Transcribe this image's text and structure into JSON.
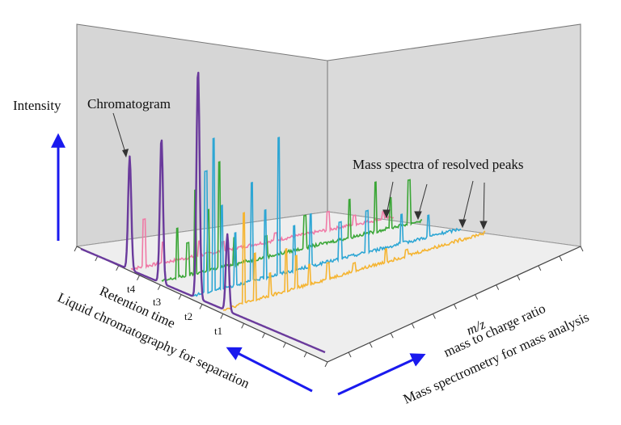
{
  "diagram": {
    "title_labels": {
      "intensity": "Intensity",
      "chromatogram": "Chromatogram",
      "mass_spectra": "Mass spectra of resolved peaks",
      "retention_time": "Retention time",
      "lc_axis": "Liquid chromatography for separation",
      "mz": "m/z",
      "mass_to_charge": "mass to charge ratio",
      "ms_axis": "Mass spectrometry for mass analysis"
    },
    "time_ticks": [
      "t4",
      "t3",
      "t2",
      "t1"
    ],
    "spectra": [
      {
        "name": "t4",
        "color": "#f07aa6",
        "peaks": [
          [
            0.05,
            0.55
          ],
          [
            0.12,
            0.25
          ],
          [
            0.26,
            0.18
          ],
          [
            0.35,
            0.12
          ],
          [
            0.55,
            0.1
          ],
          [
            0.75,
            0.22
          ],
          [
            0.85,
            0.12
          ],
          [
            0.96,
            0.1
          ]
        ]
      },
      {
        "name": "t3",
        "color": "#3aa636",
        "peaks": [
          [
            0.06,
            0.45
          ],
          [
            0.1,
            0.3
          ],
          [
            0.13,
            0.75
          ],
          [
            0.18,
            0.55
          ],
          [
            0.22,
            0.95
          ],
          [
            0.28,
            0.25
          ],
          [
            0.4,
            0.2
          ],
          [
            0.55,
            0.3
          ],
          [
            0.72,
            0.35
          ],
          [
            0.82,
            0.45
          ],
          [
            0.88,
            0.28
          ],
          [
            0.95,
            0.4
          ]
        ]
      },
      {
        "name": "t2",
        "color": "#2da6d4",
        "peaks": [
          [
            0.05,
            0.8
          ],
          [
            0.08,
            1.0
          ],
          [
            0.11,
            0.55
          ],
          [
            0.16,
            0.35
          ],
          [
            0.22,
            0.65
          ],
          [
            0.27,
            0.45
          ],
          [
            0.32,
            0.9
          ],
          [
            0.38,
            0.3
          ],
          [
            0.44,
            0.35
          ],
          [
            0.55,
            0.25
          ],
          [
            0.65,
            0.28
          ],
          [
            0.78,
            0.2
          ],
          [
            0.88,
            0.15
          ]
        ]
      },
      {
        "name": "t1",
        "color": "#f5b431",
        "peaks": [
          [
            0.08,
            0.95
          ],
          [
            0.12,
            0.5
          ],
          [
            0.18,
            0.25
          ],
          [
            0.24,
            0.45
          ],
          [
            0.28,
            0.35
          ],
          [
            0.33,
            0.22
          ],
          [
            0.4,
            0.18
          ],
          [
            0.5,
            0.1
          ],
          [
            0.62,
            0.15
          ],
          [
            0.7,
            0.08
          ]
        ]
      }
    ],
    "colors": {
      "chromatogram": "#6a3a9c",
      "arrow": "#1a1aee",
      "wall_back": "#d6d6d6",
      "wall_side": "#dadada",
      "floor": "#eeeeee"
    }
  }
}
